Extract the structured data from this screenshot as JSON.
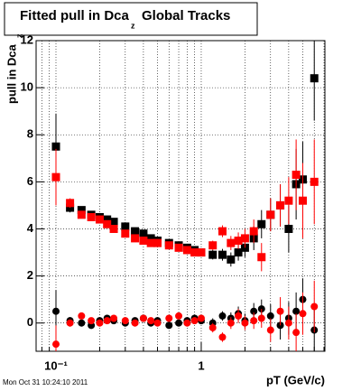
{
  "chart_data": {
    "type": "scatter",
    "title": "Fitted pull in Dca",
    "title_subscript": "z",
    "title_suffix": "Global Tracks",
    "y_label": "pull in Dca",
    "y_label_subscript": "z",
    "x_label": "pT (GeV/c)",
    "footer": "Mon Oct 31 10:24:10 2011",
    "x_log": true,
    "grid": true,
    "xlim": [
      0.073,
      7.1
    ],
    "xticks": [
      {
        "value": 0.1,
        "label": "10⁻¹"
      },
      1
    ],
    "xminorticks": [
      0.08,
      0.09,
      0.2,
      0.3,
      0.4,
      0.5,
      0.6,
      0.7,
      0.8,
      0.9,
      2,
      3,
      4,
      5,
      6,
      7
    ],
    "ylim": [
      -1.2,
      12
    ],
    "yticks": [
      0,
      2,
      4,
      6,
      8,
      10,
      12
    ],
    "x": [
      0.1,
      0.125,
      0.15,
      0.175,
      0.2,
      0.225,
      0.25,
      0.3,
      0.35,
      0.4,
      0.45,
      0.5,
      0.6,
      0.7,
      0.8,
      0.9,
      1.0,
      1.2,
      1.4,
      1.6,
      1.8,
      2.0,
      2.3,
      2.6,
      3.0,
      3.5,
      4.0,
      4.5,
      5.0,
      6.0
    ],
    "series": [
      {
        "color": "#000000",
        "marker": "square",
        "values": [
          7.5,
          4.9,
          4.8,
          4.6,
          4.5,
          4.4,
          4.3,
          4.1,
          3.9,
          3.8,
          3.6,
          3.5,
          3.4,
          3.3,
          3.2,
          3.1,
          3.0,
          2.9,
          2.9,
          2.7,
          3.0,
          3.2,
          3.6,
          4.2,
          4.6,
          5.0,
          4.0,
          5.9,
          6.1,
          10.4
        ],
        "errors": [
          1.4,
          0.2,
          0.15,
          0.1,
          0.1,
          0.1,
          0.1,
          0.1,
          0.1,
          0.1,
          0.1,
          0.1,
          0.1,
          0.1,
          0.1,
          0.15,
          0.15,
          0.2,
          0.25,
          0.3,
          0.35,
          0.4,
          0.5,
          0.6,
          0.7,
          0.9,
          1.0,
          1.5,
          1.6,
          1.8
        ]
      },
      {
        "color": "#ff0000",
        "marker": "square",
        "values": [
          6.2,
          5.1,
          4.6,
          4.5,
          4.4,
          4.2,
          4.0,
          3.8,
          3.6,
          3.5,
          3.4,
          3.4,
          3.3,
          3.2,
          3.1,
          3.0,
          3.0,
          3.3,
          3.9,
          3.4,
          3.5,
          3.6,
          3.9,
          2.8,
          4.6,
          5.0,
          5.2,
          6.3,
          5.2,
          6.0
        ],
        "errors": [
          1.2,
          0.2,
          0.15,
          0.1,
          0.1,
          0.1,
          0.1,
          0.1,
          0.1,
          0.1,
          0.1,
          0.1,
          0.1,
          0.1,
          0.1,
          0.15,
          0.15,
          0.2,
          0.25,
          0.3,
          0.35,
          0.4,
          0.5,
          0.6,
          0.7,
          0.9,
          1.0,
          1.5,
          1.6,
          1.8
        ]
      },
      {
        "color": "#000000",
        "marker": "circle",
        "values": [
          0.5,
          0.1,
          0.0,
          -0.1,
          0.1,
          0.2,
          0.1,
          0.0,
          0.1,
          0.2,
          0.0,
          0.1,
          -0.1,
          0.0,
          0.1,
          0.2,
          0.1,
          0.0,
          0.3,
          0.2,
          0.4,
          0.1,
          0.5,
          0.6,
          0.3,
          -0.1,
          0.2,
          0.5,
          1.0,
          -0.3
        ],
        "errors": [
          0.9,
          0.15,
          0.1,
          0.1,
          0.1,
          0.1,
          0.1,
          0.1,
          0.1,
          0.1,
          0.1,
          0.1,
          0.1,
          0.1,
          0.1,
          0.1,
          0.15,
          0.2,
          0.2,
          0.25,
          0.3,
          0.3,
          0.35,
          0.4,
          0.5,
          0.6,
          0.7,
          0.8,
          0.9,
          1.1
        ]
      },
      {
        "color": "#ff0000",
        "marker": "circle",
        "values": [
          -0.9,
          0.0,
          0.3,
          0.1,
          0.0,
          0.1,
          0.2,
          0.1,
          0.0,
          0.2,
          0.1,
          0.0,
          0.2,
          0.3,
          0.0,
          0.1,
          0.2,
          -0.2,
          -0.6,
          0.0,
          0.3,
          0.0,
          0.1,
          0.2,
          -0.3,
          0.5,
          0.0,
          -0.4,
          0.4,
          0.7
        ],
        "errors": [
          0.8,
          0.15,
          0.1,
          0.1,
          0.1,
          0.1,
          0.1,
          0.1,
          0.1,
          0.1,
          0.1,
          0.1,
          0.1,
          0.1,
          0.1,
          0.1,
          0.15,
          0.2,
          0.2,
          0.25,
          0.3,
          0.3,
          0.35,
          0.4,
          0.5,
          0.6,
          0.7,
          0.8,
          0.9,
          1.1
        ]
      }
    ]
  }
}
